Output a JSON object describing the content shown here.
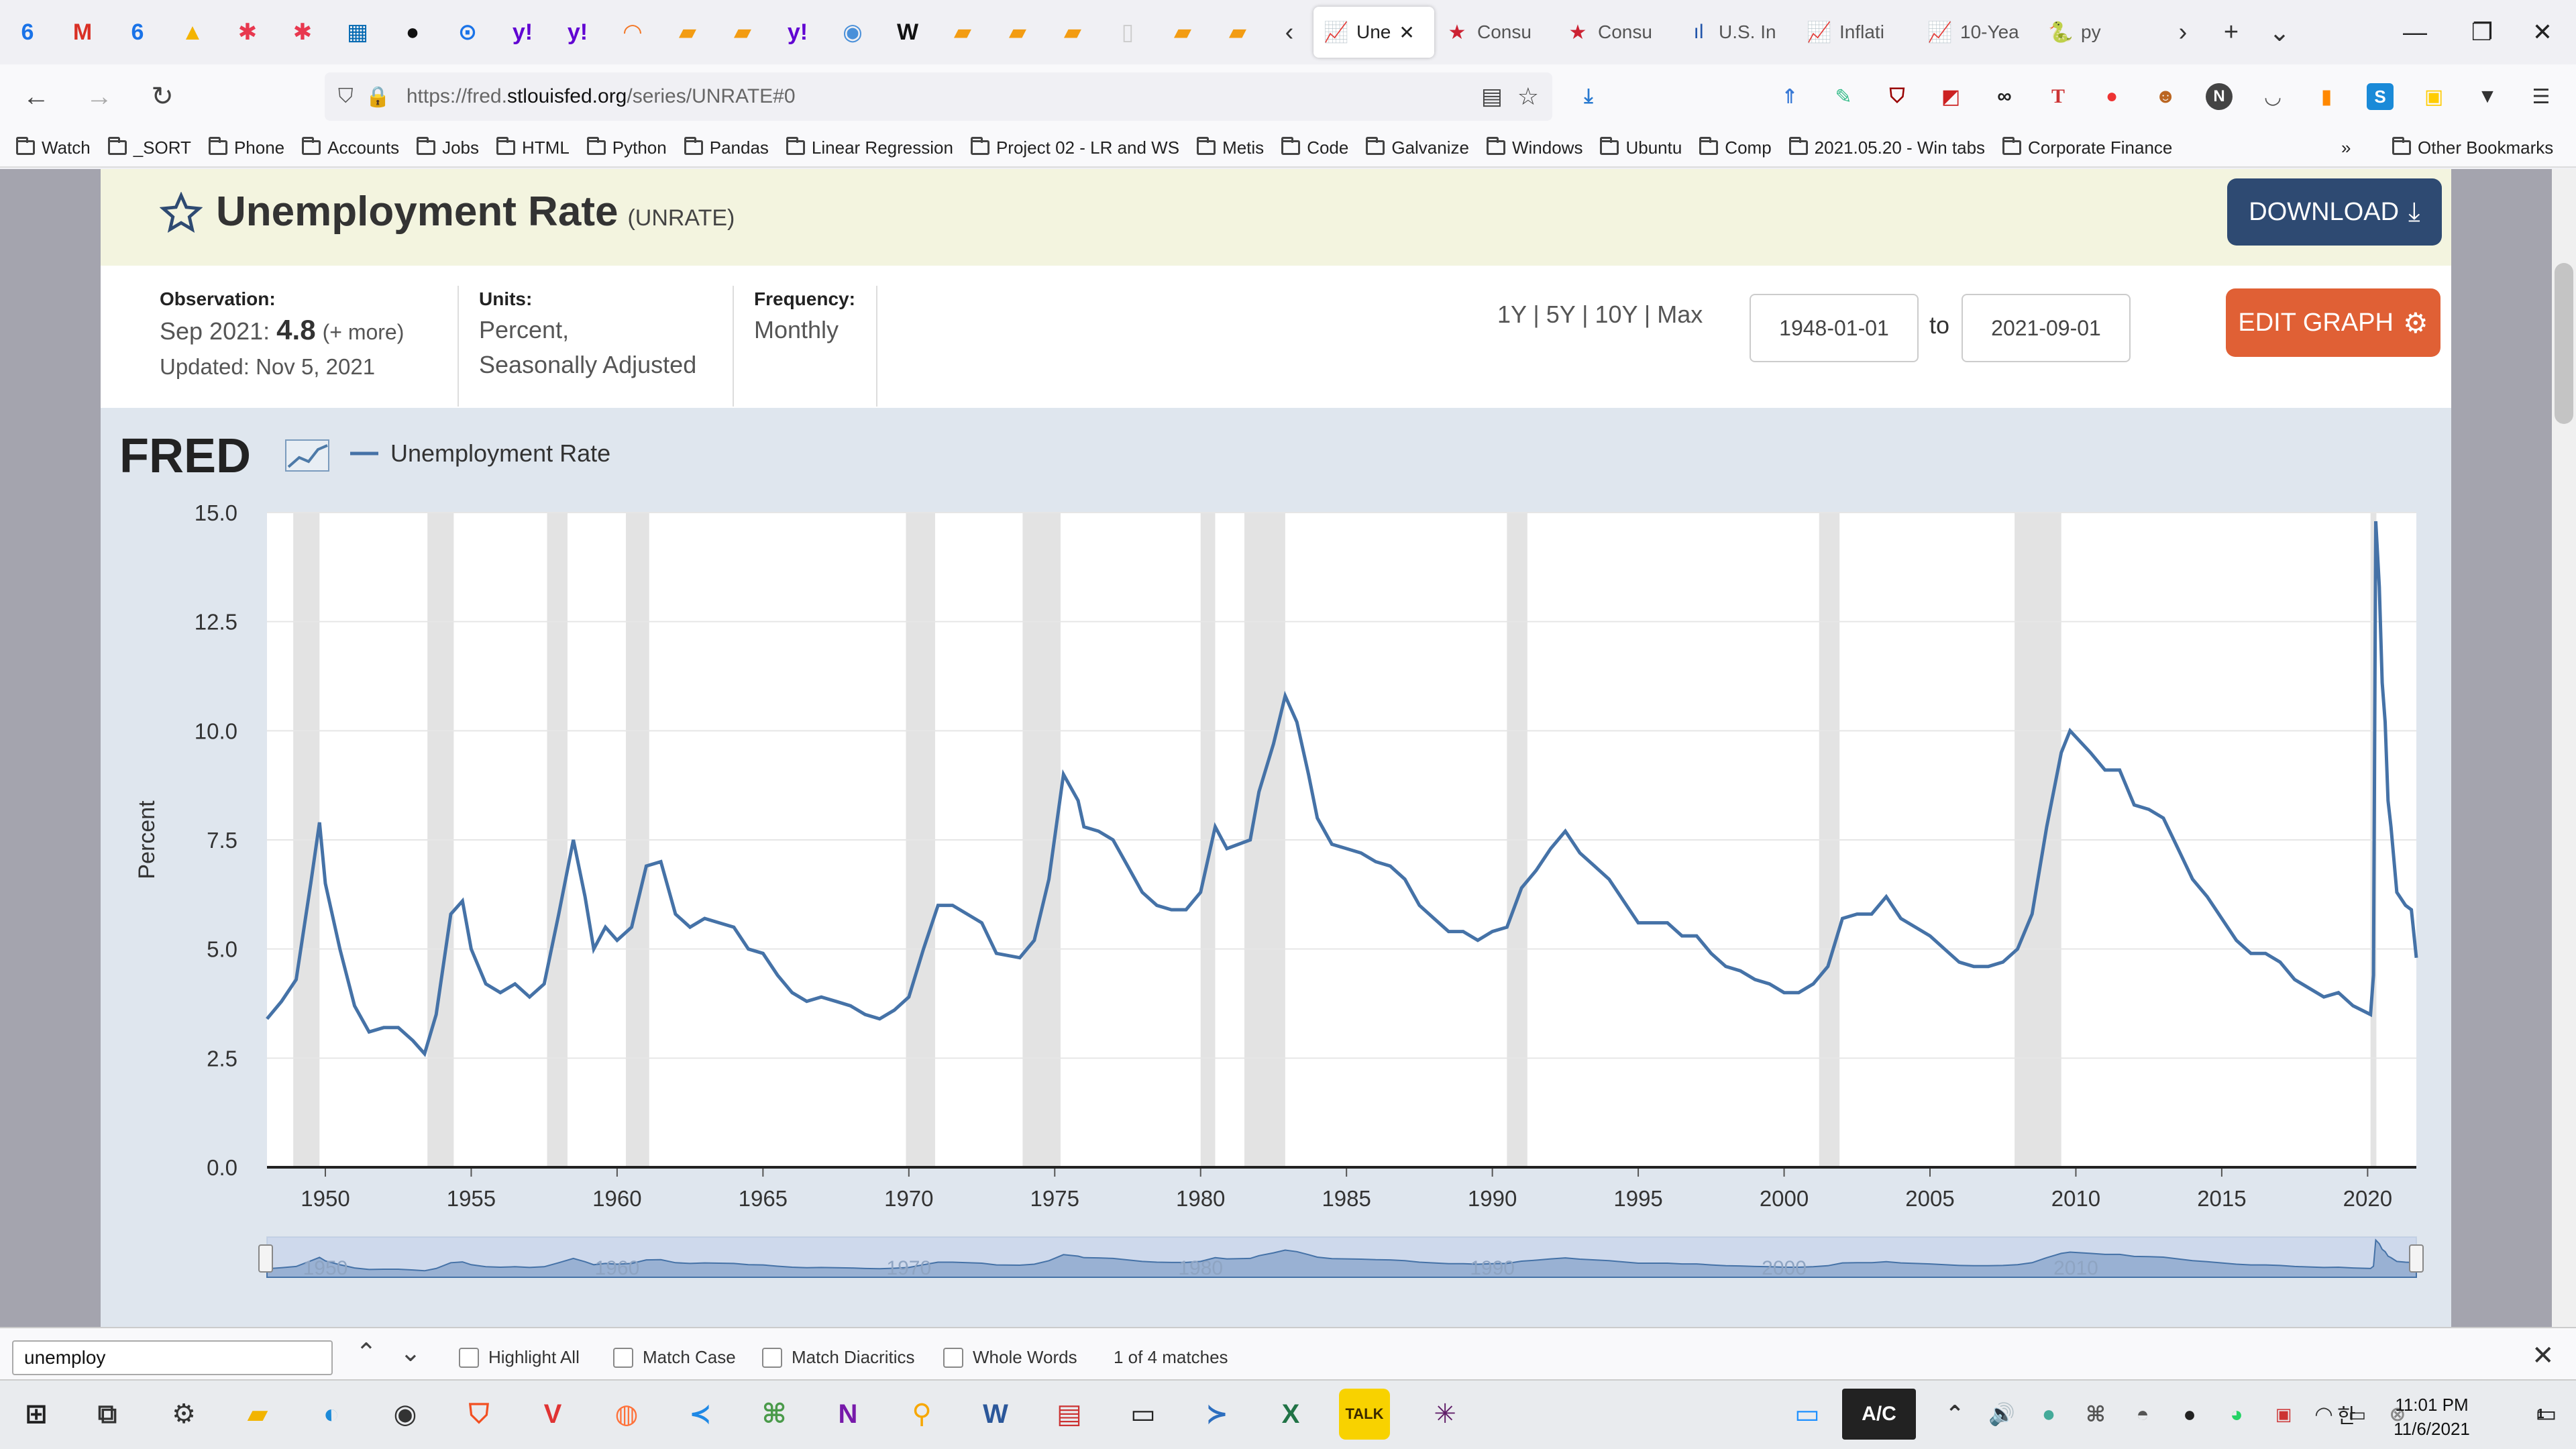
{
  "browser": {
    "pinned_tabs": [
      {
        "icon": "google-calendar-icon",
        "glyph": "6",
        "color": "#1a73e8"
      },
      {
        "icon": "gmail-icon",
        "glyph": "M",
        "color": "#d93025"
      },
      {
        "icon": "google-calendar-icon",
        "glyph": "6",
        "color": "#1a73e8"
      },
      {
        "icon": "google-drive-icon",
        "glyph": "▲",
        "color": "#f4b400"
      },
      {
        "icon": "asana-icon",
        "glyph": "✱",
        "color": "#e8384f"
      },
      {
        "icon": "asana-icon",
        "glyph": "✱",
        "color": "#e8384f"
      },
      {
        "icon": "bank-icon",
        "glyph": "▦",
        "color": "#0067b1"
      },
      {
        "icon": "github-icon",
        "glyph": "●",
        "color": "#111111"
      },
      {
        "icon": "generic-site-icon",
        "glyph": "⊙",
        "color": "#1a73e8"
      },
      {
        "icon": "yahoo-icon",
        "glyph": "y!",
        "color": "#6001d2"
      },
      {
        "icon": "yahoo-icon",
        "glyph": "y!",
        "color": "#6001d2"
      },
      {
        "icon": "jupyter-icon",
        "glyph": "◠",
        "color": "#f37726"
      },
      {
        "icon": "notebook-icon",
        "glyph": "▰",
        "color": "#f39c12"
      },
      {
        "icon": "notebook-icon",
        "glyph": "▰",
        "color": "#f39c12"
      },
      {
        "icon": "yahoo-icon",
        "glyph": "y!",
        "color": "#6001d2"
      },
      {
        "icon": "generic-site-icon",
        "glyph": "◉",
        "color": "#4a90d9"
      },
      {
        "icon": "wikipedia-icon",
        "glyph": "W",
        "color": "#111111"
      },
      {
        "icon": "notebook-icon",
        "glyph": "▰",
        "color": "#f39c12"
      },
      {
        "icon": "notebook-icon",
        "glyph": "▰",
        "color": "#f39c12"
      },
      {
        "icon": "notebook-icon",
        "glyph": "▰",
        "color": "#f39c12"
      },
      {
        "icon": "blank-page-icon",
        "glyph": "▯",
        "color": "#cccccc"
      },
      {
        "icon": "notebook-icon",
        "glyph": "▰",
        "color": "#f39c12"
      },
      {
        "icon": "notebook-icon",
        "glyph": "▰",
        "color": "#f39c12"
      }
    ],
    "tabs": [
      {
        "label": "Une",
        "icon": "fred-chart-icon",
        "glyph": "📈",
        "color": "#6b8fb5",
        "active": true
      },
      {
        "label": "Consu",
        "icon": "star-icon",
        "glyph": "★",
        "color": "#cc2233",
        "active": false
      },
      {
        "label": "Consu",
        "icon": "star-icon",
        "glyph": "★",
        "color": "#cc2233",
        "active": false
      },
      {
        "label": "U.S. In",
        "icon": "bars-icon",
        "glyph": "ıl",
        "color": "#2255aa",
        "active": false
      },
      {
        "label": "Inflati",
        "icon": "fred-chart-icon",
        "glyph": "📈",
        "color": "#6b8fb5",
        "active": false
      },
      {
        "label": "10-Yea",
        "icon": "fred-chart-icon",
        "glyph": "📈",
        "color": "#6b8fb5",
        "active": false
      },
      {
        "label": "py",
        "icon": "python-icon",
        "glyph": "🐍",
        "color": "#e8a33d",
        "active": false
      }
    ],
    "url_prefix": "https://fred.",
    "url_domain": "stlouisfed.org",
    "url_path": "/series/UNRATE#0",
    "bookmarks": [
      "Watch",
      "_SORT",
      "Phone",
      "Accounts",
      "Jobs",
      "HTML",
      "Python",
      "Pandas",
      "Linear Regression",
      "Project 02 - LR and WS",
      "Metis",
      "Code",
      "Galvanize",
      "Windows",
      "Ubuntu",
      "Comp",
      "2021.05.20 - Win tabs",
      "Corporate Finance"
    ],
    "other_bookmarks": "Other Bookmarks"
  },
  "series": {
    "title": "Unemployment Rate",
    "id": "(UNRATE)",
    "download_label": "DOWNLOAD",
    "observation_label": "Observation:",
    "observation_date": "Sep 2021:",
    "observation_value": "4.8",
    "observation_more": "(+ more)",
    "updated": "Updated: Nov 5, 2021",
    "units_label": "Units:",
    "units_line1": "Percent,",
    "units_line2": "Seasonally Adjusted",
    "frequency_label": "Frequency:",
    "frequency": "Monthly",
    "range_buttons": [
      "1Y",
      "5Y",
      "10Y",
      "Max"
    ],
    "date_from": "1948-01-01",
    "date_to_label": "to",
    "date_to": "2021-09-01",
    "edit_label": "EDIT GRAPH",
    "brand": "FRED"
  },
  "chart_data": {
    "type": "line",
    "legend": "Unemployment Rate",
    "ylabel": "Percent",
    "ylim": [
      0,
      15
    ],
    "yticks": [
      "0.0",
      "2.5",
      "5.0",
      "7.5",
      "10.0",
      "12.5",
      "15.0"
    ],
    "xlim": [
      1948.0,
      2021.67
    ],
    "xticks": [
      "1950",
      "1955",
      "1960",
      "1965",
      "1970",
      "1975",
      "1980",
      "1985",
      "1990",
      "1995",
      "2000",
      "2005",
      "2010",
      "2015",
      "2020"
    ],
    "navigator_labels": [
      "1950",
      "1960",
      "1970",
      "1980",
      "1990",
      "2000",
      "2010"
    ],
    "recessions": [
      [
        1948.9,
        1949.8
      ],
      [
        1953.5,
        1954.4
      ],
      [
        1957.6,
        1958.3
      ],
      [
        1960.3,
        1961.1
      ],
      [
        1969.9,
        1970.9
      ],
      [
        1973.9,
        1975.2
      ],
      [
        1980.0,
        1980.5
      ],
      [
        1981.5,
        1982.9
      ],
      [
        1990.5,
        1991.2
      ],
      [
        2001.2,
        2001.9
      ],
      [
        2007.9,
        2009.5
      ],
      [
        2020.1,
        2020.3
      ]
    ],
    "series": [
      {
        "name": "Unemployment Rate",
        "color": "#4572a7",
        "points": [
          [
            1948.0,
            3.4
          ],
          [
            1948.5,
            3.8
          ],
          [
            1949.0,
            4.3
          ],
          [
            1949.5,
            6.5
          ],
          [
            1949.8,
            7.9
          ],
          [
            1950.0,
            6.5
          ],
          [
            1950.5,
            5.0
          ],
          [
            1951.0,
            3.7
          ],
          [
            1951.5,
            3.1
          ],
          [
            1952.0,
            3.2
          ],
          [
            1952.5,
            3.2
          ],
          [
            1953.0,
            2.9
          ],
          [
            1953.4,
            2.6
          ],
          [
            1953.8,
            3.5
          ],
          [
            1954.3,
            5.8
          ],
          [
            1954.7,
            6.1
          ],
          [
            1955.0,
            5.0
          ],
          [
            1955.5,
            4.2
          ],
          [
            1956.0,
            4.0
          ],
          [
            1956.5,
            4.2
          ],
          [
            1957.0,
            3.9
          ],
          [
            1957.5,
            4.2
          ],
          [
            1958.0,
            5.8
          ],
          [
            1958.5,
            7.5
          ],
          [
            1958.9,
            6.2
          ],
          [
            1959.2,
            5.0
          ],
          [
            1959.6,
            5.5
          ],
          [
            1960.0,
            5.2
          ],
          [
            1960.5,
            5.5
          ],
          [
            1961.0,
            6.9
          ],
          [
            1961.5,
            7.0
          ],
          [
            1962.0,
            5.8
          ],
          [
            1962.5,
            5.5
          ],
          [
            1963.0,
            5.7
          ],
          [
            1963.5,
            5.6
          ],
          [
            1964.0,
            5.5
          ],
          [
            1964.5,
            5.0
          ],
          [
            1965.0,
            4.9
          ],
          [
            1965.5,
            4.4
          ],
          [
            1966.0,
            4.0
          ],
          [
            1966.5,
            3.8
          ],
          [
            1967.0,
            3.9
          ],
          [
            1967.5,
            3.8
          ],
          [
            1968.0,
            3.7
          ],
          [
            1968.5,
            3.5
          ],
          [
            1969.0,
            3.4
          ],
          [
            1969.5,
            3.6
          ],
          [
            1970.0,
            3.9
          ],
          [
            1970.5,
            5.0
          ],
          [
            1971.0,
            6.0
          ],
          [
            1971.5,
            6.0
          ],
          [
            1972.0,
            5.8
          ],
          [
            1972.5,
            5.6
          ],
          [
            1973.0,
            4.9
          ],
          [
            1973.8,
            4.8
          ],
          [
            1974.3,
            5.2
          ],
          [
            1974.8,
            6.6
          ],
          [
            1975.3,
            9.0
          ],
          [
            1975.8,
            8.4
          ],
          [
            1976.0,
            7.8
          ],
          [
            1976.5,
            7.7
          ],
          [
            1977.0,
            7.5
          ],
          [
            1977.5,
            6.9
          ],
          [
            1978.0,
            6.3
          ],
          [
            1978.5,
            6.0
          ],
          [
            1979.0,
            5.9
          ],
          [
            1979.5,
            5.9
          ],
          [
            1980.0,
            6.3
          ],
          [
            1980.5,
            7.8
          ],
          [
            1980.9,
            7.3
          ],
          [
            1981.3,
            7.4
          ],
          [
            1981.7,
            7.5
          ],
          [
            1982.0,
            8.6
          ],
          [
            1982.5,
            9.7
          ],
          [
            1982.9,
            10.8
          ],
          [
            1983.3,
            10.2
          ],
          [
            1983.7,
            9.0
          ],
          [
            1984.0,
            8.0
          ],
          [
            1984.5,
            7.4
          ],
          [
            1985.0,
            7.3
          ],
          [
            1985.5,
            7.2
          ],
          [
            1986.0,
            7.0
          ],
          [
            1986.5,
            6.9
          ],
          [
            1987.0,
            6.6
          ],
          [
            1987.5,
            6.0
          ],
          [
            1988.0,
            5.7
          ],
          [
            1988.5,
            5.4
          ],
          [
            1989.0,
            5.4
          ],
          [
            1989.5,
            5.2
          ],
          [
            1990.0,
            5.4
          ],
          [
            1990.5,
            5.5
          ],
          [
            1991.0,
            6.4
          ],
          [
            1991.5,
            6.8
          ],
          [
            1992.0,
            7.3
          ],
          [
            1992.5,
            7.7
          ],
          [
            1993.0,
            7.2
          ],
          [
            1993.5,
            6.9
          ],
          [
            1994.0,
            6.6
          ],
          [
            1994.5,
            6.1
          ],
          [
            1995.0,
            5.6
          ],
          [
            1995.5,
            5.6
          ],
          [
            1996.0,
            5.6
          ],
          [
            1996.5,
            5.3
          ],
          [
            1997.0,
            5.3
          ],
          [
            1997.5,
            4.9
          ],
          [
            1998.0,
            4.6
          ],
          [
            1998.5,
            4.5
          ],
          [
            1999.0,
            4.3
          ],
          [
            1999.5,
            4.2
          ],
          [
            2000.0,
            4.0
          ],
          [
            2000.5,
            4.0
          ],
          [
            2001.0,
            4.2
          ],
          [
            2001.5,
            4.6
          ],
          [
            2002.0,
            5.7
          ],
          [
            2002.5,
            5.8
          ],
          [
            2003.0,
            5.8
          ],
          [
            2003.5,
            6.2
          ],
          [
            2004.0,
            5.7
          ],
          [
            2004.5,
            5.5
          ],
          [
            2005.0,
            5.3
          ],
          [
            2005.5,
            5.0
          ],
          [
            2006.0,
            4.7
          ],
          [
            2006.5,
            4.6
          ],
          [
            2007.0,
            4.6
          ],
          [
            2007.5,
            4.7
          ],
          [
            2008.0,
            5.0
          ],
          [
            2008.5,
            5.8
          ],
          [
            2009.0,
            7.8
          ],
          [
            2009.5,
            9.5
          ],
          [
            2009.8,
            10.0
          ],
          [
            2010.5,
            9.5
          ],
          [
            2011.0,
            9.1
          ],
          [
            2011.5,
            9.1
          ],
          [
            2012.0,
            8.3
          ],
          [
            2012.5,
            8.2
          ],
          [
            2013.0,
            8.0
          ],
          [
            2013.5,
            7.3
          ],
          [
            2014.0,
            6.6
          ],
          [
            2014.5,
            6.2
          ],
          [
            2015.0,
            5.7
          ],
          [
            2015.5,
            5.2
          ],
          [
            2016.0,
            4.9
          ],
          [
            2016.5,
            4.9
          ],
          [
            2017.0,
            4.7
          ],
          [
            2017.5,
            4.3
          ],
          [
            2018.0,
            4.1
          ],
          [
            2018.5,
            3.9
          ],
          [
            2019.0,
            4.0
          ],
          [
            2019.5,
            3.7
          ],
          [
            2020.1,
            3.5
          ],
          [
            2020.2,
            4.4
          ],
          [
            2020.28,
            14.8
          ],
          [
            2020.4,
            13.3
          ],
          [
            2020.5,
            11.1
          ],
          [
            2020.6,
            10.2
          ],
          [
            2020.7,
            8.4
          ],
          [
            2020.8,
            7.8
          ],
          [
            2021.0,
            6.3
          ],
          [
            2021.3,
            6.0
          ],
          [
            2021.5,
            5.9
          ],
          [
            2021.67,
            4.8
          ]
        ]
      }
    ]
  },
  "findbar": {
    "query": "unemploy",
    "highlight_all": "Highlight All",
    "match_case": "Match Case",
    "match_diacritics": "Match Diacritics",
    "whole_words": "Whole Words",
    "result": "1 of 4 matches"
  },
  "taskbar": {
    "ac_label": "A/C",
    "ime": "한",
    "time": "11:01 PM",
    "date": "11/6/2021",
    "notifications": "1"
  }
}
